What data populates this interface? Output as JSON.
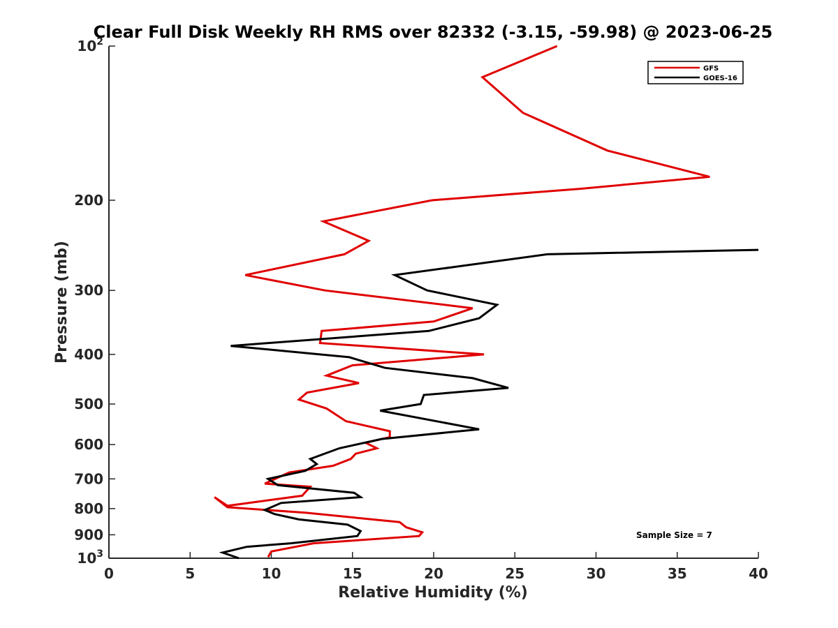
{
  "chart_data": {
    "type": "line",
    "title": "Clear Full Disk Weekly RH RMS over 82332 (-3.15, -59.98) @ 2023-06-25",
    "xlabel": "Relative Humidity (%)",
    "ylabel": "Pressure (mb)",
    "xlim": [
      0,
      40
    ],
    "ylim": [
      100,
      1000
    ],
    "yscale": "log",
    "y_reversed": true,
    "grid": false,
    "legend_position": "top-right",
    "x_ticks": [
      0,
      5,
      10,
      15,
      20,
      25,
      30,
      35,
      40
    ],
    "y_ticks": [
      {
        "value": 100,
        "base": "10",
        "exp": "2"
      },
      {
        "value": 200,
        "label": "200"
      },
      {
        "value": 300,
        "label": "300"
      },
      {
        "value": 400,
        "label": "400"
      },
      {
        "value": 500,
        "label": "500"
      },
      {
        "value": 600,
        "label": "600"
      },
      {
        "value": 700,
        "label": "700"
      },
      {
        "value": 800,
        "label": "800"
      },
      {
        "value": 900,
        "label": "900"
      },
      {
        "value": 1000,
        "base": "10",
        "exp": "3"
      }
    ],
    "series": [
      {
        "name": "GFS",
        "color": "#e00000",
        "points": [
          [
            27.6,
            100
          ],
          [
            23.0,
            115
          ],
          [
            25.5,
            135
          ],
          [
            30.7,
            160
          ],
          [
            37.0,
            180
          ],
          [
            29.0,
            190
          ],
          [
            19.9,
            200
          ],
          [
            13.2,
            220
          ],
          [
            16.0,
            240
          ],
          [
            14.5,
            255
          ],
          [
            8.4,
            280
          ],
          [
            13.3,
            300
          ],
          [
            22.4,
            325
          ],
          [
            20.0,
            345
          ],
          [
            13.1,
            360
          ],
          [
            13.0,
            380
          ],
          [
            23.1,
            400
          ],
          [
            15.0,
            420
          ],
          [
            13.4,
            440
          ],
          [
            15.4,
            455
          ],
          [
            12.2,
            475
          ],
          [
            11.7,
            490
          ],
          [
            13.4,
            510
          ],
          [
            14.6,
            540
          ],
          [
            17.3,
            565
          ],
          [
            17.3,
            580
          ],
          [
            15.8,
            595
          ],
          [
            16.5,
            610
          ],
          [
            15.2,
            625
          ],
          [
            14.9,
            640
          ],
          [
            13.8,
            660
          ],
          [
            11.1,
            680
          ],
          [
            9.6,
            715
          ],
          [
            12.4,
            725
          ],
          [
            11.9,
            755
          ],
          [
            7.3,
            790
          ],
          [
            6.5,
            760
          ],
          [
            7.3,
            795
          ],
          [
            12.1,
            815
          ],
          [
            17.9,
            850
          ],
          [
            18.3,
            870
          ],
          [
            19.3,
            890
          ],
          [
            19.1,
            905
          ],
          [
            12.6,
            935
          ],
          [
            10.0,
            970
          ],
          [
            9.8,
            995
          ]
        ]
      },
      {
        "name": "GOES-16",
        "color": "#000000",
        "points": [
          [
            40.0,
            250
          ],
          [
            27.0,
            255
          ],
          [
            17.6,
            280
          ],
          [
            19.6,
            300
          ],
          [
            23.9,
            320
          ],
          [
            22.8,
            340
          ],
          [
            19.7,
            360
          ],
          [
            7.5,
            385
          ],
          [
            14.8,
            405
          ],
          [
            17.0,
            425
          ],
          [
            22.4,
            445
          ],
          [
            24.6,
            465
          ],
          [
            19.4,
            480
          ],
          [
            19.2,
            500
          ],
          [
            16.7,
            515
          ],
          [
            22.8,
            560
          ],
          [
            16.8,
            585
          ],
          [
            14.2,
            610
          ],
          [
            12.4,
            640
          ],
          [
            12.8,
            655
          ],
          [
            12.1,
            675
          ],
          [
            9.8,
            700
          ],
          [
            10.4,
            720
          ],
          [
            15.1,
            745
          ],
          [
            15.5,
            760
          ],
          [
            10.6,
            780
          ],
          [
            9.6,
            805
          ],
          [
            10.2,
            820
          ],
          [
            11.7,
            840
          ],
          [
            14.7,
            860
          ],
          [
            15.5,
            885
          ],
          [
            15.3,
            905
          ],
          [
            11.2,
            935
          ],
          [
            8.5,
            950
          ],
          [
            7.0,
            975
          ],
          [
            8.0,
            1000
          ]
        ]
      }
    ],
    "legend": [
      {
        "label": "GFS",
        "color": "#e00000"
      },
      {
        "label": "GOES-16",
        "color": "#000000"
      }
    ],
    "annotations": [
      {
        "text": "Sample Size = 7"
      }
    ]
  }
}
